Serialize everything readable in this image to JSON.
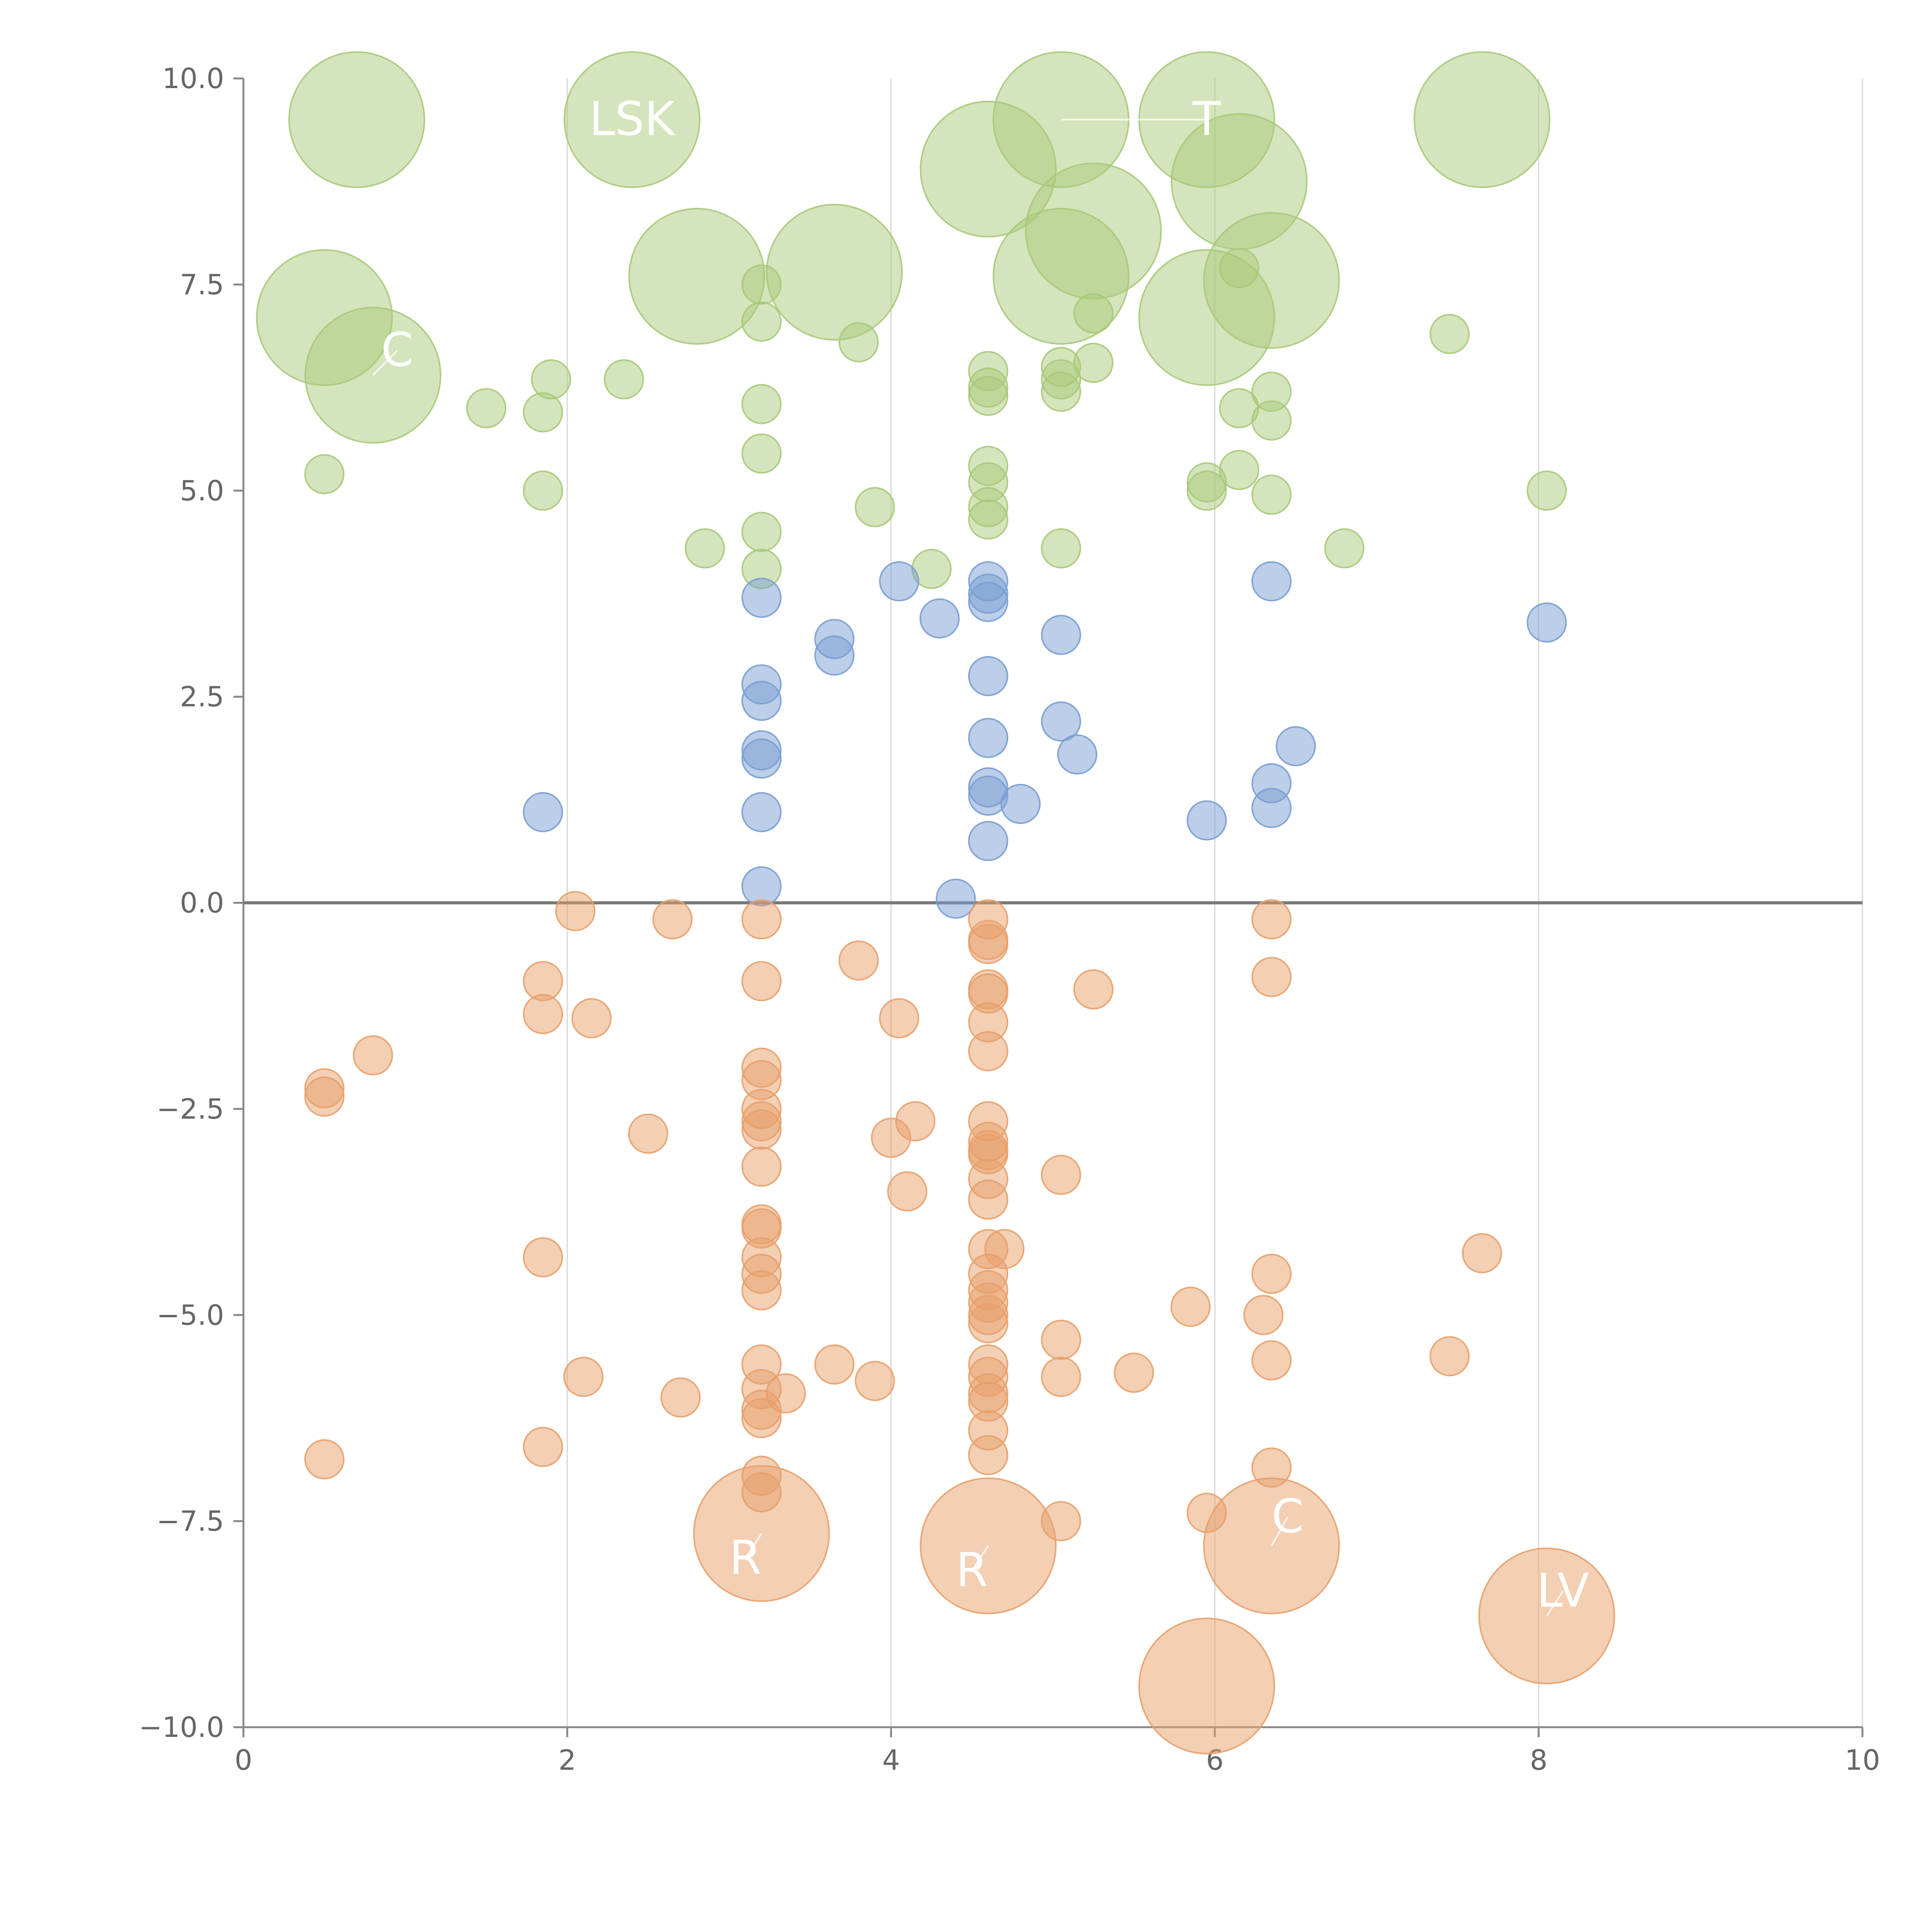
{
  "chart_data": {
    "type": "scatter",
    "title": "",
    "xlabel": "",
    "ylabel": "",
    "xlim": [
      0,
      10
    ],
    "ylim": [
      -10,
      10
    ],
    "x_ticks": [
      0,
      2,
      4,
      6,
      8,
      10
    ],
    "y_ticks": [
      -10.0,
      -7.5,
      -5.0,
      -2.5,
      0.0,
      2.5,
      5.0,
      7.5,
      10.0
    ],
    "x_tick_labels": [
      "0",
      "2",
      "4",
      "6",
      "8",
      "10"
    ],
    "y_tick_labels": [
      "−10.0",
      "−7.5",
      "−5.0",
      "−2.5",
      "0.0",
      "2.5",
      "5.0",
      "7.5",
      "10.0"
    ],
    "reference_line_y": 0,
    "grid": "vertical",
    "colors": {
      "green": "#a9c97a",
      "blue": "#7a9ed2",
      "orange": "#e8a06a",
      "axis": "#888888",
      "grid": "#d6d6d6"
    },
    "size_scale": {
      "small": 1,
      "large": 3.5
    },
    "series": [
      {
        "name": "upper",
        "color_key": "green",
        "points": [
          [
            0.7,
            9.5,
            "large"
          ],
          [
            2.4,
            9.5,
            "large"
          ],
          [
            4.6,
            8.9,
            "large"
          ],
          [
            5.05,
            9.5,
            "large"
          ],
          [
            5.95,
            9.5,
            "large"
          ],
          [
            7.65,
            9.5,
            "large"
          ],
          [
            6.15,
            8.75,
            "large"
          ],
          [
            5.25,
            8.15,
            "large"
          ],
          [
            0.5,
            7.1,
            "large"
          ],
          [
            2.8,
            7.6,
            "large"
          ],
          [
            3.65,
            7.65,
            "large"
          ],
          [
            5.05,
            7.6,
            "large"
          ],
          [
            5.95,
            7.1,
            "large"
          ],
          [
            6.35,
            7.55,
            "large"
          ],
          [
            0.8,
            6.4,
            "large"
          ],
          [
            3.2,
            7.5,
            "small"
          ],
          [
            3.2,
            7.05,
            "small"
          ],
          [
            3.8,
            6.8,
            "small"
          ],
          [
            5.25,
            7.15,
            "small"
          ],
          [
            6.15,
            7.7,
            "small"
          ],
          [
            7.45,
            6.9,
            "small"
          ],
          [
            1.5,
            6.0,
            "small"
          ],
          [
            1.85,
            5.95,
            "small"
          ],
          [
            1.9,
            6.35,
            "small"
          ],
          [
            2.35,
            6.35,
            "small"
          ],
          [
            3.2,
            6.05,
            "small"
          ],
          [
            4.6,
            6.45,
            "small"
          ],
          [
            4.6,
            6.25,
            "small"
          ],
          [
            4.6,
            6.15,
            "small"
          ],
          [
            5.05,
            6.5,
            "small"
          ],
          [
            5.05,
            6.35,
            "small"
          ],
          [
            5.05,
            6.2,
            "small"
          ],
          [
            5.25,
            6.55,
            "small"
          ],
          [
            6.15,
            6.0,
            "small"
          ],
          [
            6.35,
            6.2,
            "small"
          ],
          [
            6.35,
            5.85,
            "small"
          ],
          [
            0.5,
            5.2,
            "small"
          ],
          [
            1.85,
            5.0,
            "small"
          ],
          [
            3.2,
            5.45,
            "small"
          ],
          [
            4.6,
            5.3,
            "small"
          ],
          [
            4.6,
            5.1,
            "small"
          ],
          [
            4.6,
            4.8,
            "small"
          ],
          [
            4.6,
            4.65,
            "small"
          ],
          [
            5.95,
            5.1,
            "small"
          ],
          [
            5.95,
            5.0,
            "small"
          ],
          [
            6.15,
            5.25,
            "small"
          ],
          [
            6.35,
            4.95,
            "small"
          ],
          [
            8.05,
            5.0,
            "small"
          ],
          [
            3.9,
            4.8,
            "small"
          ],
          [
            2.85,
            4.3,
            "small"
          ],
          [
            3.2,
            4.5,
            "small"
          ],
          [
            3.2,
            4.05,
            "small"
          ],
          [
            4.25,
            4.05,
            "small"
          ],
          [
            5.05,
            4.3,
            "small"
          ],
          [
            6.8,
            4.3,
            "small"
          ]
        ]
      },
      {
        "name": "middle",
        "color_key": "blue",
        "points": [
          [
            4.05,
            3.9,
            "small"
          ],
          [
            4.6,
            3.9,
            "small"
          ],
          [
            4.6,
            3.75,
            "small"
          ],
          [
            4.6,
            3.65,
            "small"
          ],
          [
            6.35,
            3.9,
            "small"
          ],
          [
            3.2,
            3.7,
            "small"
          ],
          [
            4.3,
            3.45,
            "small"
          ],
          [
            3.65,
            3.2,
            "small"
          ],
          [
            3.65,
            3.0,
            "small"
          ],
          [
            5.05,
            3.25,
            "small"
          ],
          [
            8.05,
            3.4,
            "small"
          ],
          [
            3.2,
            2.65,
            "small"
          ],
          [
            3.2,
            2.45,
            "small"
          ],
          [
            4.6,
            2.75,
            "small"
          ],
          [
            5.05,
            2.2,
            "small"
          ],
          [
            4.6,
            2.0,
            "small"
          ],
          [
            3.2,
            1.85,
            "small"
          ],
          [
            3.2,
            1.75,
            "small"
          ],
          [
            5.15,
            1.8,
            "small"
          ],
          [
            6.5,
            1.9,
            "small"
          ],
          [
            6.35,
            1.45,
            "small"
          ],
          [
            4.6,
            1.4,
            "small"
          ],
          [
            4.6,
            1.3,
            "small"
          ],
          [
            4.8,
            1.2,
            "small"
          ],
          [
            1.85,
            1.1,
            "small"
          ],
          [
            3.2,
            1.1,
            "small"
          ],
          [
            6.35,
            1.15,
            "small"
          ],
          [
            5.95,
            1.0,
            "small"
          ],
          [
            4.6,
            0.75,
            "small"
          ],
          [
            3.2,
            0.2,
            "small"
          ],
          [
            4.4,
            0.05,
            "small"
          ]
        ]
      },
      {
        "name": "lower",
        "color_key": "orange",
        "points": [
          [
            2.05,
            -0.1,
            "small"
          ],
          [
            2.65,
            -0.2,
            "small"
          ],
          [
            3.2,
            -0.2,
            "small"
          ],
          [
            4.6,
            -0.2,
            "small"
          ],
          [
            4.6,
            -0.45,
            "small"
          ],
          [
            4.6,
            -0.5,
            "small"
          ],
          [
            6.35,
            -0.2,
            "small"
          ],
          [
            3.8,
            -0.7,
            "small"
          ],
          [
            1.85,
            -0.95,
            "small"
          ],
          [
            3.2,
            -0.95,
            "small"
          ],
          [
            6.35,
            -0.9,
            "small"
          ],
          [
            4.6,
            -1.05,
            "small"
          ],
          [
            4.6,
            -1.1,
            "small"
          ],
          [
            5.25,
            -1.05,
            "small"
          ],
          [
            1.85,
            -1.35,
            "small"
          ],
          [
            2.15,
            -1.4,
            "small"
          ],
          [
            4.05,
            -1.4,
            "small"
          ],
          [
            4.6,
            -1.45,
            "small"
          ],
          [
            4.6,
            -1.8,
            "small"
          ],
          [
            0.8,
            -1.85,
            "small"
          ],
          [
            3.2,
            -2.0,
            "small"
          ],
          [
            3.2,
            -2.15,
            "small"
          ],
          [
            0.5,
            -2.25,
            "small"
          ],
          [
            0.5,
            -2.35,
            "small"
          ],
          [
            3.2,
            -2.5,
            "small"
          ],
          [
            3.2,
            -2.65,
            "small"
          ],
          [
            3.2,
            -2.75,
            "small"
          ],
          [
            2.5,
            -2.8,
            "small"
          ],
          [
            4.0,
            -2.85,
            "small"
          ],
          [
            4.15,
            -2.65,
            "small"
          ],
          [
            4.6,
            -2.65,
            "small"
          ],
          [
            4.6,
            -2.9,
            "small"
          ],
          [
            4.6,
            -3.0,
            "small"
          ],
          [
            4.6,
            -3.05,
            "small"
          ],
          [
            3.2,
            -3.2,
            "small"
          ],
          [
            5.05,
            -3.3,
            "small"
          ],
          [
            4.6,
            -3.35,
            "small"
          ],
          [
            4.6,
            -3.6,
            "small"
          ],
          [
            4.1,
            -3.5,
            "small"
          ],
          [
            3.2,
            -3.9,
            "small"
          ],
          [
            3.2,
            -3.95,
            "small"
          ],
          [
            4.6,
            -4.2,
            "small"
          ],
          [
            4.7,
            -4.2,
            "small"
          ],
          [
            1.85,
            -4.3,
            "small"
          ],
          [
            3.2,
            -4.3,
            "small"
          ],
          [
            7.65,
            -4.25,
            "small"
          ],
          [
            3.2,
            -4.5,
            "small"
          ],
          [
            4.6,
            -4.5,
            "small"
          ],
          [
            4.6,
            -4.7,
            "small"
          ],
          [
            6.35,
            -4.5,
            "small"
          ],
          [
            3.2,
            -4.7,
            "small"
          ],
          [
            4.6,
            -4.85,
            "small"
          ],
          [
            4.6,
            -5.0,
            "small"
          ],
          [
            5.85,
            -4.9,
            "small"
          ],
          [
            6.3,
            -5.0,
            "small"
          ],
          [
            4.6,
            -5.1,
            "small"
          ],
          [
            5.05,
            -5.3,
            "small"
          ],
          [
            7.45,
            -5.5,
            "small"
          ],
          [
            6.35,
            -5.55,
            "small"
          ],
          [
            3.65,
            -5.6,
            "small"
          ],
          [
            3.2,
            -5.6,
            "small"
          ],
          [
            4.6,
            -5.6,
            "small"
          ],
          [
            4.6,
            -5.75,
            "small"
          ],
          [
            2.1,
            -5.75,
            "small"
          ],
          [
            3.9,
            -5.8,
            "small"
          ],
          [
            5.05,
            -5.75,
            "small"
          ],
          [
            5.5,
            -5.7,
            "small"
          ],
          [
            3.2,
            -5.9,
            "small"
          ],
          [
            3.35,
            -5.95,
            "small"
          ],
          [
            4.6,
            -5.95,
            "small"
          ],
          [
            4.6,
            -6.05,
            "small"
          ],
          [
            2.7,
            -6.0,
            "small"
          ],
          [
            3.2,
            -6.15,
            "small"
          ],
          [
            3.2,
            -6.25,
            "small"
          ],
          [
            4.6,
            -6.4,
            "small"
          ],
          [
            1.85,
            -6.6,
            "small"
          ],
          [
            0.5,
            -6.75,
            "small"
          ],
          [
            4.6,
            -6.7,
            "small"
          ],
          [
            6.35,
            -6.85,
            "small"
          ],
          [
            3.2,
            -6.95,
            "small"
          ],
          [
            3.2,
            -7.15,
            "small"
          ],
          [
            5.95,
            -7.4,
            "small"
          ],
          [
            5.05,
            -7.5,
            "small"
          ],
          [
            3.2,
            -7.65,
            "large"
          ],
          [
            4.6,
            -7.8,
            "large"
          ],
          [
            6.35,
            -7.8,
            "large"
          ],
          [
            8.05,
            -8.65,
            "large"
          ],
          [
            5.95,
            -9.5,
            "large"
          ]
        ]
      }
    ],
    "labels": [
      {
        "text": "LSK",
        "x": 2.4,
        "y": 9.5,
        "line_to": [
          2.4,
          9.5
        ]
      },
      {
        "text": "T",
        "x": 5.95,
        "y": 9.5,
        "line_to": [
          5.05,
          9.5
        ]
      },
      {
        "text": "C",
        "x": 0.95,
        "y": 6.7,
        "line_to": [
          0.8,
          6.4
        ]
      },
      {
        "text": "R",
        "x": 3.1,
        "y": -7.95,
        "line_to": [
          3.2,
          -7.65
        ]
      },
      {
        "text": "R",
        "x": 4.5,
        "y": -8.1,
        "line_to": [
          4.6,
          -7.8
        ]
      },
      {
        "text": "C",
        "x": 6.45,
        "y": -7.45,
        "line_to": [
          6.35,
          -7.8
        ]
      },
      {
        "text": "LV",
        "x": 8.15,
        "y": -8.35,
        "line_to": [
          8.05,
          -8.65
        ]
      }
    ]
  }
}
